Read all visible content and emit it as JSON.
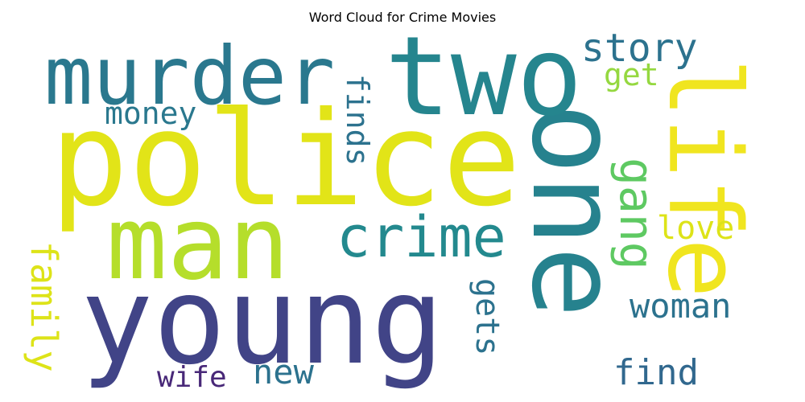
{
  "chart_data": {
    "type": "wordcloud",
    "title": "Word Cloud for Crime Movies",
    "words": [
      {
        "text": "police",
        "weight": 1.0,
        "color": "#e2e418"
      },
      {
        "text": "young",
        "weight": 0.95,
        "color": "#414487"
      },
      {
        "text": "one",
        "weight": 0.93,
        "color": "#26828e"
      },
      {
        "text": "two",
        "weight": 0.86,
        "color": "#25858e"
      },
      {
        "text": "man",
        "weight": 0.8,
        "color": "#b5de2b"
      },
      {
        "text": "life",
        "weight": 0.78,
        "color": "#f0e51f"
      },
      {
        "text": "murder",
        "weight": 0.62,
        "color": "#2a788e"
      },
      {
        "text": "crime",
        "weight": 0.48,
        "color": "#23898e"
      },
      {
        "text": "gang",
        "weight": 0.42,
        "color": "#5ec962"
      },
      {
        "text": "story",
        "weight": 0.3,
        "color": "#2c728e"
      },
      {
        "text": "woman",
        "weight": 0.28,
        "color": "#2c728e"
      },
      {
        "text": "family",
        "weight": 0.28,
        "color": "#dde318"
      },
      {
        "text": "find",
        "weight": 0.28,
        "color": "#31688e"
      },
      {
        "text": "new",
        "weight": 0.28,
        "color": "#2c728e"
      },
      {
        "text": "money",
        "weight": 0.26,
        "color": "#2a788e"
      },
      {
        "text": "love",
        "weight": 0.26,
        "color": "#dde318"
      },
      {
        "text": "finds",
        "weight": 0.26,
        "color": "#2c728e"
      },
      {
        "text": "gets",
        "weight": 0.26,
        "color": "#2c728e"
      },
      {
        "text": "wife",
        "weight": 0.26,
        "color": "#482878"
      },
      {
        "text": "get",
        "weight": 0.24,
        "color": "#95d840"
      }
    ]
  }
}
